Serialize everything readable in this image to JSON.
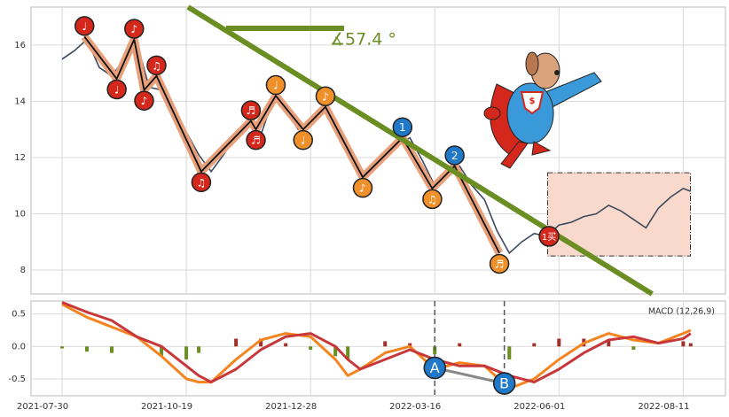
{
  "chart_data": [
    {
      "type": "price",
      "x": [
        0,
        5,
        10,
        15,
        20,
        25,
        30,
        35,
        40,
        45,
        50,
        55,
        60,
        65,
        70,
        75,
        80,
        85,
        90,
        95,
        100,
        105,
        110,
        115,
        120,
        125,
        130,
        135,
        140,
        145,
        150,
        155,
        160,
        165,
        170,
        175,
        180,
        185,
        190,
        195,
        200,
        205,
        210,
        215,
        220,
        225,
        230,
        235,
        240,
        245,
        250,
        253
      ],
      "values": [
        15.5,
        15.8,
        16.2,
        15.2,
        14.9,
        15.5,
        16.1,
        14.5,
        14.4,
        13.4,
        12.9,
        12.1,
        11.5,
        12.1,
        12.8,
        13.2,
        12.8,
        14.1,
        13.7,
        13.0,
        13.3,
        13.8,
        13.0,
        12.3,
        11.3,
        11.6,
        12.1,
        12.5,
        12.7,
        11.9,
        11.0,
        11.4,
        11.7,
        11.0,
        10.5,
        9.4,
        8.6,
        9.0,
        9.3,
        9.2,
        9.6,
        9.7,
        9.9,
        10.0,
        10.3,
        10.1,
        9.8,
        9.5,
        10.2,
        10.6,
        10.9,
        10.8
      ],
      "color": "#3d4a5c",
      "xlim": [
        -12.5,
        267
      ],
      "ylim": [
        7.15,
        17.35
      ],
      "yticks": [
        8,
        10,
        12,
        14,
        16
      ],
      "grid": true,
      "zigzag": {
        "x": [
          9,
          22,
          29,
          33,
          38,
          56,
          76,
          78,
          86,
          97,
          106,
          121,
          137,
          149,
          158,
          176
        ],
        "values": [
          16.3,
          14.8,
          16.2,
          14.4,
          14.9,
          11.5,
          13.3,
          13.0,
          14.2,
          13.0,
          13.8,
          11.3,
          12.7,
          10.9,
          11.7,
          8.6
        ],
        "labels": [
          "♩",
          "♩",
          "♪",
          "♪",
          "♫",
          "♫",
          "♬",
          "♬",
          "♩",
          "♩",
          "♪",
          "♪",
          "1",
          "♫",
          "2",
          "♬"
        ],
        "marker_colors": [
          "#d4281c",
          "#d4281c",
          "#d4281c",
          "#d4281c",
          "#d4281c",
          "#d4281c",
          "#d4281c",
          "#d4281c",
          "#f0902a",
          "#f0902a",
          "#f0902a",
          "#f0902a",
          "#1f78c8",
          "#f0902a",
          "#1f78c8",
          "#f0902a"
        ],
        "marker_side": [
          "above",
          "below",
          "above",
          "below",
          "above",
          "below",
          "above",
          "below",
          "above",
          "below",
          "above",
          "below",
          "above",
          "below",
          "above",
          "below"
        ],
        "color": "#111111",
        "band_color": "#e8a07a"
      },
      "buy_signal": {
        "x": 196,
        "value": 9.2,
        "label": "1买",
        "color": "#d4281c"
      },
      "trendline": {
        "x": [
          50.7,
          237.5
        ],
        "values": [
          17.35,
          7.15
        ],
        "color": "#6b8e23"
      },
      "angle_label": "∡57.4 °",
      "box": {
        "x": [
          195.4,
          252.9
        ],
        "values": [
          8.5,
          11.46
        ]
      }
    },
    {
      "type": "macd",
      "label": "MACD (12,26,9)",
      "x": [
        0,
        10,
        20,
        30,
        40,
        50,
        55,
        60,
        70,
        80,
        90,
        100,
        110,
        115,
        120,
        130,
        140,
        150,
        160,
        170,
        180,
        190,
        200,
        210,
        220,
        230,
        240,
        250,
        253
      ],
      "series": [
        {
          "color": "#f5841f",
          "values": [
            0.65,
            0.45,
            0.3,
            0.15,
            -0.15,
            -0.5,
            -0.55,
            -0.55,
            -0.2,
            0.1,
            0.2,
            0.15,
            -0.2,
            -0.45,
            -0.35,
            -0.1,
            0.0,
            -0.35,
            -0.25,
            -0.3,
            -0.65,
            -0.5,
            -0.2,
            0.05,
            0.2,
            0.1,
            0.05,
            0.2,
            0.25
          ]
        },
        {
          "color": "#c8373a",
          "values": [
            0.68,
            0.53,
            0.4,
            0.15,
            0.0,
            -0.3,
            -0.45,
            -0.55,
            -0.35,
            -0.05,
            0.15,
            0.2,
            0.0,
            -0.2,
            -0.35,
            -0.2,
            -0.05,
            -0.2,
            -0.3,
            -0.3,
            -0.45,
            -0.55,
            -0.35,
            -0.1,
            0.1,
            0.15,
            0.05,
            0.12,
            0.2
          ]
        }
      ],
      "histogram": {
        "values": [
          -0.03,
          -0.08,
          -0.1,
          0.0,
          -0.15,
          -0.2,
          -0.1,
          0.0,
          0.12,
          0.12,
          0.05,
          -0.05,
          -0.15,
          -0.2,
          0.0,
          0.08,
          0.05,
          -0.12,
          0.05,
          0.0,
          -0.2,
          0.05,
          0.12,
          0.12,
          0.1,
          -0.05,
          0.0,
          0.08,
          0.05
        ],
        "up_color": "#a2302a",
        "down_color": "#6b8e23"
      },
      "xlim": [
        -12.5,
        267
      ],
      "ylim": [
        -0.76,
        0.7
      ],
      "yticks": [
        0.5,
        {
          "value": 0,
          "label": "0.0"
        },
        -0.5
      ],
      "grid": true,
      "xticks": [
        {
          "value": 0,
          "label": "2021-07-30"
        },
        {
          "value": 50,
          "label": "2021-10-19"
        },
        {
          "value": 100,
          "label": "2021-12-28"
        },
        {
          "value": 150,
          "label": "2022-03-16"
        },
        {
          "value": 200,
          "label": "2022-06-01"
        },
        {
          "value": 250,
          "label": "2022-08-11"
        }
      ],
      "annotations": [
        {
          "label": "A",
          "x": 150,
          "value": -0.33
        },
        {
          "label": "B",
          "x": 178,
          "value": -0.57
        }
      ]
    }
  ]
}
